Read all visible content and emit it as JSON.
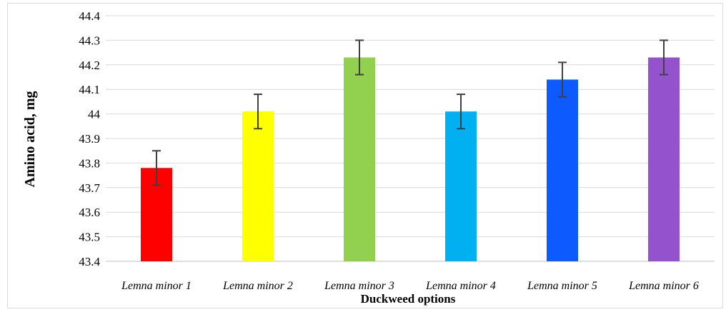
{
  "chart_data": {
    "type": "bar",
    "title": "",
    "xlabel": "Duckweed options",
    "ylabel": "Amino acid, mg",
    "ylim": [
      43.4,
      44.4
    ],
    "yticks": [
      "43.4",
      "43.5",
      "43.6",
      "43.7",
      "43.8",
      "43.9",
      "44",
      "44.1",
      "44.2",
      "44.3",
      "44.4"
    ],
    "grid": true,
    "legend": "none",
    "categories": [
      "Lemna minor 1",
      "Lemna minor 2",
      "Lemna minor 3",
      "Lemna minor 4",
      "Lemna minor 5",
      "Lemna minor 6"
    ],
    "values": [
      43.78,
      44.01,
      44.23,
      44.01,
      44.14,
      44.23
    ],
    "errors": [
      0.07,
      0.07,
      0.07,
      0.07,
      0.07,
      0.07
    ],
    "colors": [
      "#ff0000",
      "#ffff00",
      "#92d050",
      "#00b0f0",
      "#0d5bff",
      "#9452cc"
    ]
  }
}
